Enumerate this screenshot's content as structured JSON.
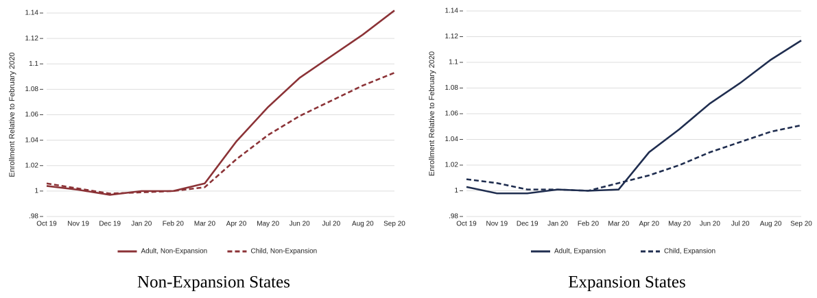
{
  "chart_data": [
    {
      "type": "line",
      "title": "Non-Expansion States",
      "y_label": "Enrollment Relative to February 2020",
      "categories": [
        "Oct 19",
        "Nov 19",
        "Dec 19",
        "Jan 20",
        "Feb 20",
        "Mar 20",
        "Apr 20",
        "May 20",
        "Jun 20",
        "Jul 20",
        "Aug 20",
        "Sep 20"
      ],
      "series": [
        {
          "name": "Adult, Non-Expansion",
          "color": "#8b3236",
          "linestyle": "solid",
          "values": [
            1.004,
            1.001,
            0.997,
            1.0,
            1.0,
            1.006,
            1.039,
            1.066,
            1.089,
            1.106,
            1.123,
            1.142
          ]
        },
        {
          "name": "Child, Non-Expansion",
          "color": "#8b3236",
          "linestyle": "dashed",
          "values": [
            1.006,
            1.002,
            0.998,
            0.999,
            1.0,
            1.003,
            1.025,
            1.044,
            1.059,
            1.071,
            1.083,
            1.093
          ]
        }
      ],
      "ylim": [
        0.98,
        1.14
      ],
      "yticks": [
        {
          "value": 0.98,
          "label": ".98"
        },
        1,
        1.02,
        1.04,
        1.06,
        1.08,
        1.1,
        1.12,
        1.14
      ],
      "grid": true
    },
    {
      "type": "line",
      "title": "Expansion States",
      "y_label": "Enrollment Relative to February 2020",
      "categories": [
        "Oct 19",
        "Nov 19",
        "Dec 19",
        "Jan 20",
        "Feb 20",
        "Mar 20",
        "Apr 20",
        "May 20",
        "Jun 20",
        "Jul 20",
        "Aug 20",
        "Sep 20"
      ],
      "series": [
        {
          "name": "Adult, Expansion",
          "color": "#1f2d4f",
          "linestyle": "solid",
          "values": [
            1.003,
            0.998,
            0.998,
            1.001,
            1.0,
            1.001,
            1.03,
            1.048,
            1.068,
            1.084,
            1.102,
            1.117
          ]
        },
        {
          "name": "Child, Expansion",
          "color": "#1f2d4f",
          "linestyle": "dashed",
          "values": [
            1.009,
            1.006,
            1.001,
            1.001,
            1.0,
            1.006,
            1.012,
            1.02,
            1.03,
            1.038,
            1.046,
            1.051
          ]
        }
      ],
      "ylim": [
        0.98,
        1.14
      ],
      "yticks": [
        {
          "value": 0.98,
          "label": ".98"
        },
        1,
        1.02,
        1.04,
        1.06,
        1.08,
        1.1,
        1.12,
        1.14
      ],
      "grid": true
    }
  ]
}
